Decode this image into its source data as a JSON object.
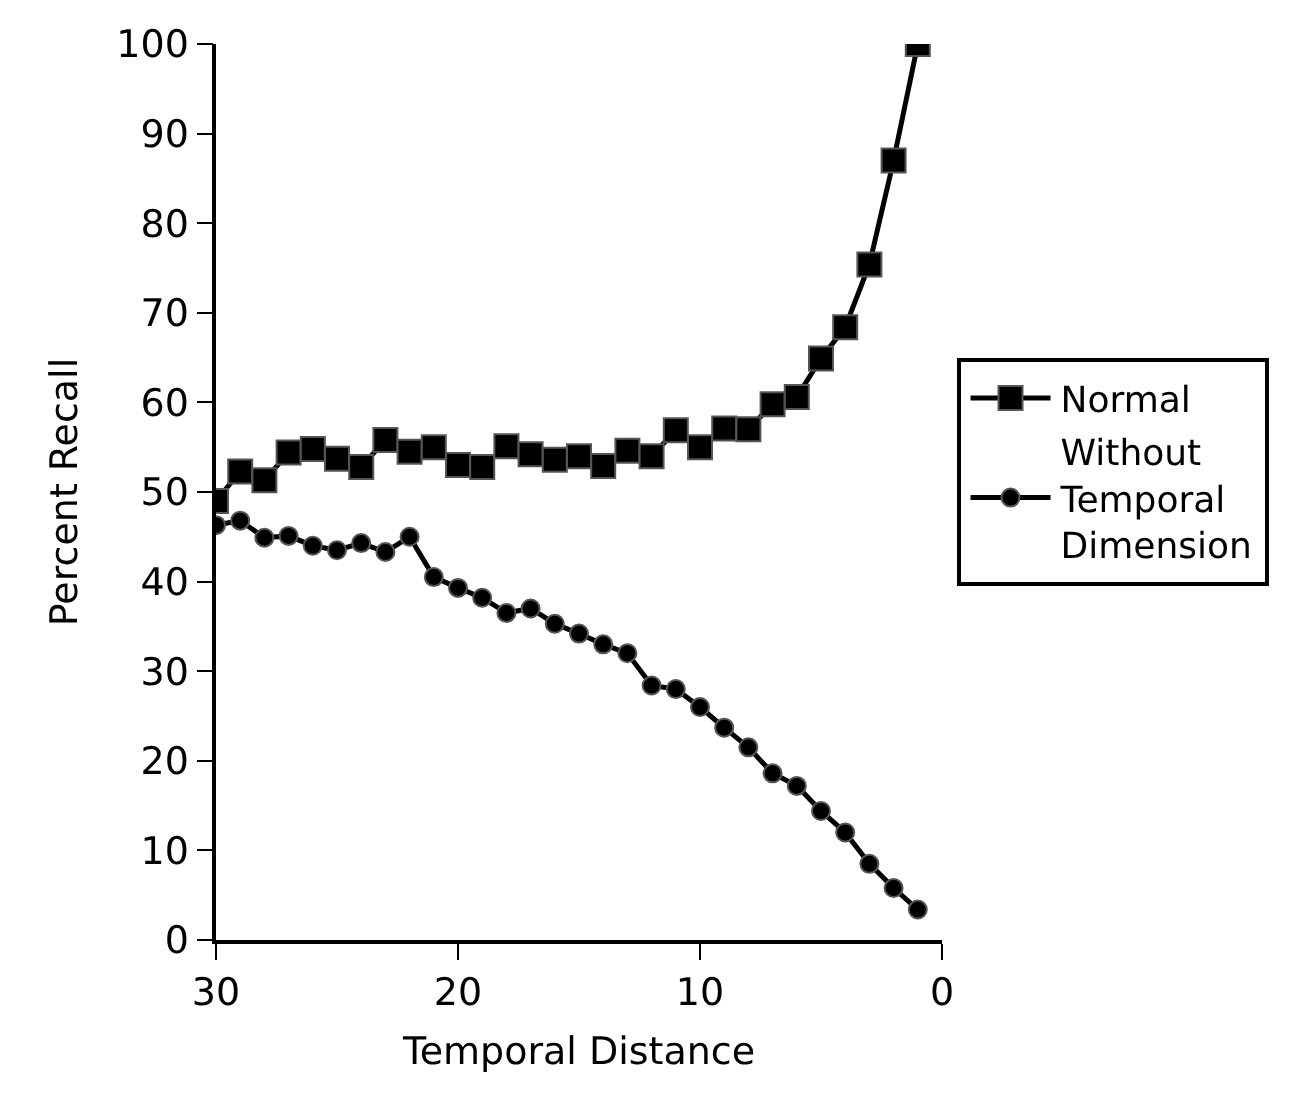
{
  "chart_data": {
    "type": "line",
    "xlabel": "Temporal Distance",
    "ylabel": "Percent Recall",
    "x": [
      30,
      29,
      28,
      27,
      26,
      25,
      24,
      23,
      22,
      21,
      20,
      19,
      18,
      17,
      16,
      15,
      14,
      13,
      12,
      11,
      10,
      9,
      8,
      7,
      6,
      5,
      4,
      3,
      2,
      1
    ],
    "xlim": [
      30,
      0
    ],
    "xticks": [
      30,
      20,
      10,
      0
    ],
    "ylim": [
      0,
      100
    ],
    "yticks": [
      0,
      10,
      20,
      30,
      40,
      50,
      60,
      70,
      80,
      90,
      100
    ],
    "grid": false,
    "legend": "right",
    "line_style": "solid",
    "series": [
      {
        "name": "Normal",
        "color": "#000000",
        "marker": "square",
        "values": [
          49,
          52.3,
          51.3,
          54.4,
          54.8,
          53.7,
          52.8,
          55.8,
          54.5,
          55,
          53,
          52.8,
          55.1,
          54.2,
          53.6,
          54,
          52.9,
          54.6,
          54,
          56.9,
          55,
          57.1,
          57,
          59.8,
          60.6,
          64.9,
          68.4,
          75.4,
          87,
          100
        ]
      },
      {
        "name": "Without Temporal Dimension",
        "color": "#000000",
        "marker": "circle",
        "values": [
          46.3,
          46.8,
          44.9,
          45.1,
          44,
          43.5,
          44.3,
          43.3,
          45,
          40.5,
          39.3,
          38.2,
          36.5,
          37,
          35.3,
          34.2,
          33,
          32,
          28.4,
          28,
          26,
          23.7,
          21.5,
          18.6,
          17.2,
          14.4,
          12,
          8.5,
          5.8,
          3.4
        ]
      }
    ]
  }
}
